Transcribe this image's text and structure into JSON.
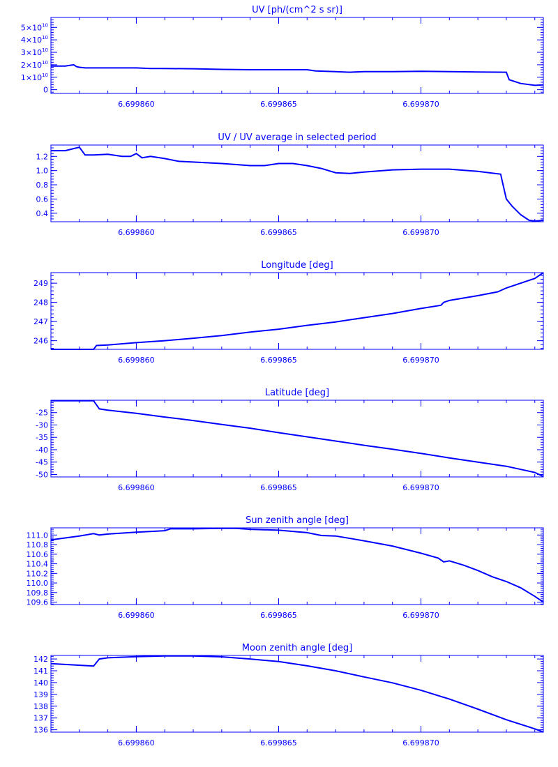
{
  "colors": {
    "ink": "#0000ff",
    "background": "#ffffff"
  },
  "x_tick_labels": [
    "6.699860",
    "6.699865",
    "6.699870"
  ],
  "chart_data": [
    {
      "type": "line",
      "title": "UV [ph/(cm^2 s sr)]",
      "xlim": [
        6.699857,
        6.6998743
      ],
      "ylim": [
        -3000000000.0,
        58000000000.0
      ],
      "x_ticks": [
        6.69986,
        6.699865,
        6.69987
      ],
      "x_tick_labels": [
        "6.699860",
        "6.699865",
        "6.699870"
      ],
      "y_ticks": [
        0,
        10000000000.0,
        20000000000.0,
        30000000000.0,
        40000000000.0,
        50000000000.0
      ],
      "y_tick_labels": [
        {
          "mantissa": "",
          "exponent": "",
          "text": "0"
        },
        {
          "mantissa": "1×10",
          "exponent": "10"
        },
        {
          "mantissa": "2×10",
          "exponent": "10"
        },
        {
          "mantissa": "3×10",
          "exponent": "10"
        },
        {
          "mantissa": "4×10",
          "exponent": "10"
        },
        {
          "mantissa": "5×10",
          "exponent": "10"
        }
      ],
      "series": [
        {
          "x": [
            6.699857,
            6.6998575,
            6.6998578,
            6.6998579,
            6.699858,
            6.6998582,
            6.6998585,
            6.699859,
            6.69986,
            6.6998605,
            6.699861,
            6.699862,
            6.699863,
            6.699864,
            6.699865,
            6.699866,
            6.6998663,
            6.699867,
            6.6998675,
            6.699868,
            6.699869,
            6.69987,
            6.699871,
            6.699872,
            6.699873,
            6.6998731,
            6.6998735,
            6.699874,
            6.6998743
          ],
          "y": [
            19000000000.0,
            19000000000.0,
            20000000000.0,
            18500000000.0,
            18000000000.0,
            17500000000.0,
            17500000000.0,
            17500000000.0,
            17500000000.0,
            17000000000.0,
            17000000000.0,
            16800000000.0,
            16300000000.0,
            16000000000.0,
            16000000000.0,
            16000000000.0,
            15000000000.0,
            14500000000.0,
            14000000000.0,
            14500000000.0,
            14500000000.0,
            14800000000.0,
            14500000000.0,
            14200000000.0,
            14000000000.0,
            8000000000.0,
            5000000000.0,
            3500000000.0,
            3800000000.0
          ]
        }
      ]
    },
    {
      "type": "line",
      "title": "UV / UV average in selected period",
      "xlim": [
        6.699857,
        6.6998743
      ],
      "ylim": [
        0.28,
        1.36
      ],
      "x_ticks": [
        6.69986,
        6.699865,
        6.69987
      ],
      "x_tick_labels": [
        "6.699860",
        "6.699865",
        "6.699870"
      ],
      "y_ticks": [
        0.4,
        0.6,
        0.8,
        1.0,
        1.2
      ],
      "y_tick_labels": [
        "0.4",
        "0.6",
        "0.8",
        "1.0",
        "1.2"
      ],
      "series": [
        {
          "x": [
            6.699857,
            6.6998575,
            6.699858,
            6.6998582,
            6.6998585,
            6.699859,
            6.6998595,
            6.6998598,
            6.69986,
            6.6998602,
            6.6998605,
            6.699861,
            6.6998615,
            6.699862,
            6.699863,
            6.699864,
            6.6998645,
            6.699865,
            6.6998655,
            6.699866,
            6.6998665,
            6.699867,
            6.6998675,
            6.699868,
            6.699869,
            6.69987,
            6.699871,
            6.699872,
            6.6998728,
            6.699873,
            6.6998732,
            6.6998735,
            6.6998738,
            6.699874,
            6.6998743
          ],
          "y": [
            1.28,
            1.28,
            1.33,
            1.22,
            1.22,
            1.23,
            1.2,
            1.2,
            1.24,
            1.18,
            1.2,
            1.17,
            1.13,
            1.12,
            1.1,
            1.07,
            1.07,
            1.1,
            1.1,
            1.07,
            1.03,
            0.97,
            0.96,
            0.98,
            1.01,
            1.02,
            1.02,
            0.99,
            0.95,
            0.6,
            0.5,
            0.38,
            0.3,
            0.29,
            0.3
          ]
        }
      ]
    },
    {
      "type": "line",
      "title": "Longitude [deg]",
      "xlim": [
        6.699857,
        6.6998743
      ],
      "ylim": [
        245.55,
        249.55
      ],
      "x_ticks": [
        6.69986,
        6.699865,
        6.69987
      ],
      "x_tick_labels": [
        "6.699860",
        "6.699865",
        "6.699870"
      ],
      "y_ticks": [
        246,
        247,
        248,
        249
      ],
      "y_tick_labels": [
        "246",
        "247",
        "248",
        "249"
      ],
      "series": [
        {
          "x": [
            6.699857,
            6.6998585,
            6.6998586,
            6.699859,
            6.69986,
            6.699861,
            6.699862,
            6.699863,
            6.699864,
            6.699865,
            6.699866,
            6.699867,
            6.699868,
            6.699869,
            6.69987,
            6.6998707,
            6.6998708,
            6.699871,
            6.699872,
            6.6998727,
            6.699873,
            6.699874,
            6.6998743
          ],
          "y": [
            245.55,
            245.55,
            245.75,
            245.78,
            245.9,
            246.0,
            246.13,
            246.27,
            246.45,
            246.6,
            246.8,
            246.98,
            247.2,
            247.42,
            247.68,
            247.85,
            248.0,
            248.1,
            248.35,
            248.55,
            248.75,
            249.25,
            249.55
          ]
        }
      ]
    },
    {
      "type": "line",
      "title": "Latitude [deg]",
      "xlim": [
        6.699857,
        6.6998743
      ],
      "ylim": [
        -51,
        -20
      ],
      "x_ticks": [
        6.69986,
        6.699865,
        6.69987
      ],
      "x_tick_labels": [
        "6.699860",
        "6.699865",
        "6.699870"
      ],
      "y_ticks": [
        -50,
        -45,
        -40,
        -35,
        -30,
        -25
      ],
      "y_tick_labels": [
        "-50",
        "-45",
        "-40",
        "-35",
        "-30",
        "-25"
      ],
      "series": [
        {
          "x": [
            6.699857,
            6.6998585,
            6.6998587,
            6.699859,
            6.69986,
            6.699861,
            6.699862,
            6.699863,
            6.699864,
            6.699865,
            6.699866,
            6.699867,
            6.699868,
            6.699869,
            6.69987,
            6.699871,
            6.699872,
            6.699873,
            6.699874,
            6.6998743
          ],
          "y": [
            -20.2,
            -20.2,
            -23.5,
            -24.0,
            -25.3,
            -26.8,
            -28.2,
            -29.8,
            -31.3,
            -33.1,
            -34.8,
            -36.5,
            -38.2,
            -39.8,
            -41.5,
            -43.3,
            -45.0,
            -46.7,
            -49.2,
            -50.8
          ]
        }
      ]
    },
    {
      "type": "line",
      "title": "Sun zenith angle [deg]",
      "xlim": [
        6.699857,
        6.6998743
      ],
      "ylim": [
        109.55,
        111.15
      ],
      "x_ticks": [
        6.69986,
        6.699865,
        6.69987
      ],
      "x_tick_labels": [
        "6.699860",
        "6.699865",
        "6.699870"
      ],
      "y_ticks": [
        109.6,
        109.8,
        110.0,
        110.2,
        110.4,
        110.6,
        110.8,
        111.0
      ],
      "y_tick_labels": [
        "109.6",
        "109.8",
        "110.0",
        "110.2",
        "110.4",
        "110.6",
        "110.8",
        "111.0"
      ],
      "series": [
        {
          "x": [
            6.699857,
            6.699858,
            6.6998585,
            6.6998587,
            6.699859,
            6.69986,
            6.699861,
            6.6998612,
            6.699862,
            6.699863,
            6.6998635,
            6.699864,
            6.699865,
            6.699866,
            6.6998665,
            6.699867,
            6.699868,
            6.699869,
            6.69987,
            6.6998706,
            6.6998708,
            6.699871,
            6.6998715,
            6.699872,
            6.6998725,
            6.699873,
            6.6998735,
            6.699874,
            6.6998743
          ],
          "y": [
            110.9,
            110.98,
            111.03,
            111.0,
            111.02,
            111.06,
            111.09,
            111.13,
            111.13,
            111.14,
            111.14,
            111.12,
            111.1,
            111.05,
            110.99,
            110.98,
            110.88,
            110.77,
            110.62,
            110.52,
            110.44,
            110.46,
            110.37,
            110.26,
            110.13,
            110.03,
            109.9,
            109.72,
            109.6
          ]
        }
      ]
    },
    {
      "type": "line",
      "title": "Moon zenith angle [deg]",
      "xlim": [
        6.699857,
        6.6998743
      ],
      "ylim": [
        135.8,
        142.3
      ],
      "x_ticks": [
        6.69986,
        6.699865,
        6.69987
      ],
      "x_tick_labels": [
        "6.699860",
        "6.699865",
        "6.699870"
      ],
      "y_ticks": [
        136,
        137,
        138,
        139,
        140,
        141,
        142
      ],
      "y_tick_labels": [
        "136",
        "137",
        "138",
        "139",
        "140",
        "141",
        "142"
      ],
      "series": [
        {
          "x": [
            6.699857,
            6.6998585,
            6.6998587,
            6.699859,
            6.69986,
            6.699861,
            6.699862,
            6.699863,
            6.699864,
            6.699865,
            6.699866,
            6.699867,
            6.699868,
            6.699869,
            6.69987,
            6.699871,
            6.699872,
            6.699873,
            6.699874,
            6.6998743
          ],
          "y": [
            141.6,
            141.4,
            142.0,
            142.1,
            142.2,
            142.25,
            142.25,
            142.18,
            142.0,
            141.78,
            141.42,
            141.0,
            140.48,
            139.98,
            139.35,
            138.6,
            137.75,
            136.85,
            136.08,
            135.8
          ]
        }
      ]
    }
  ]
}
